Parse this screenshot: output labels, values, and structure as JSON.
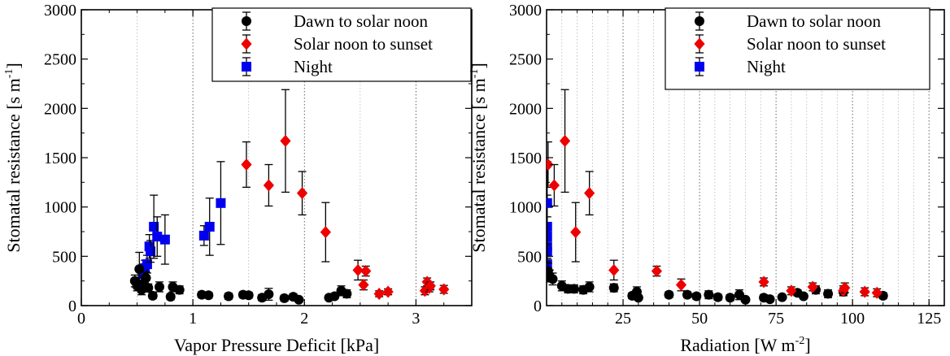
{
  "chart_data": [
    {
      "type": "scatter",
      "xlabel": "Vapor Pressure Deficit [kPa]",
      "ylabel": "Stomatal resistance [s m-1]",
      "ylabel_main": "Stomatal resistance [s m",
      "ylabel_sup": "-1",
      "ylabel_tail": "]",
      "xlim": [
        0,
        3.5
      ],
      "ylim": [
        0,
        3000
      ],
      "xticks": [
        0,
        1,
        2,
        3
      ],
      "xtick_labels": [
        "0",
        "1",
        "2",
        "3"
      ],
      "yticks": [
        0,
        500,
        1000,
        1500,
        2000,
        2500,
        3000
      ],
      "ytick_labels": [
        "0",
        "500",
        "1000",
        "1500",
        "2000",
        "2500",
        "3000"
      ],
      "grid": "vertical dotted lines",
      "legend_position": "top-right",
      "series": [
        {
          "name": "Dawn to solar noon",
          "color": "#000000",
          "marker": "circle",
          "points": [
            {
              "x": 0.48,
              "y": 250,
              "err": 60
            },
            {
              "x": 0.5,
              "y": 200,
              "err": 50
            },
            {
              "x": 0.52,
              "y": 370,
              "err": 170
            },
            {
              "x": 0.54,
              "y": 160,
              "err": 50
            },
            {
              "x": 0.56,
              "y": 230,
              "err": 60
            },
            {
              "x": 0.58,
              "y": 280,
              "err": 60
            },
            {
              "x": 0.6,
              "y": 180,
              "err": 40
            },
            {
              "x": 0.64,
              "y": 100,
              "err": 30
            },
            {
              "x": 0.7,
              "y": 190,
              "err": 50
            },
            {
              "x": 0.8,
              "y": 90,
              "err": 30
            },
            {
              "x": 0.82,
              "y": 190,
              "err": 50
            },
            {
              "x": 0.88,
              "y": 160,
              "err": 40
            },
            {
              "x": 1.08,
              "y": 110,
              "err": 30
            },
            {
              "x": 1.14,
              "y": 105,
              "err": 30
            },
            {
              "x": 1.32,
              "y": 95,
              "err": 30
            },
            {
              "x": 1.45,
              "y": 110,
              "err": 30
            },
            {
              "x": 1.5,
              "y": 105,
              "err": 30
            },
            {
              "x": 1.62,
              "y": 80,
              "err": 30
            },
            {
              "x": 1.68,
              "y": 115,
              "err": 60
            },
            {
              "x": 1.82,
              "y": 75,
              "err": 30
            },
            {
              "x": 1.9,
              "y": 90,
              "err": 30
            },
            {
              "x": 1.95,
              "y": 60,
              "err": 20
            },
            {
              "x": 2.22,
              "y": 80,
              "err": 20
            },
            {
              "x": 2.27,
              "y": 95,
              "err": 20
            },
            {
              "x": 2.33,
              "y": 150,
              "err": 50
            },
            {
              "x": 2.38,
              "y": 120,
              "err": 40
            }
          ]
        },
        {
          "name": "Solar noon to sunset",
          "color": "#ee0000",
          "marker": "diamond",
          "points": [
            {
              "x": 1.48,
              "y": 1430,
              "err": 230
            },
            {
              "x": 1.68,
              "y": 1220,
              "err": 210
            },
            {
              "x": 1.83,
              "y": 1670,
              "err": 520
            },
            {
              "x": 1.98,
              "y": 1140,
              "err": 220
            },
            {
              "x": 2.19,
              "y": 745,
              "err": 300
            },
            {
              "x": 2.48,
              "y": 360,
              "err": 100
            },
            {
              "x": 2.53,
              "y": 210,
              "err": 50
            },
            {
              "x": 2.55,
              "y": 350,
              "err": 50
            },
            {
              "x": 2.67,
              "y": 120,
              "err": 30
            },
            {
              "x": 2.75,
              "y": 140,
              "err": 30
            },
            {
              "x": 3.08,
              "y": 150,
              "err": 40
            },
            {
              "x": 3.1,
              "y": 240,
              "err": 40
            },
            {
              "x": 3.12,
              "y": 180,
              "err": 40
            },
            {
              "x": 3.13,
              "y": 200,
              "err": 40
            },
            {
              "x": 3.25,
              "y": 165,
              "err": 40
            }
          ]
        },
        {
          "name": "Night",
          "color": "#0000ee",
          "marker": "square",
          "points": [
            {
              "x": 0.55,
              "y": 320,
              "err": 70
            },
            {
              "x": 0.57,
              "y": 380,
              "err": 80
            },
            {
              "x": 0.59,
              "y": 420,
              "err": 90
            },
            {
              "x": 0.61,
              "y": 600,
              "err": 120
            },
            {
              "x": 0.62,
              "y": 550,
              "err": 110
            },
            {
              "x": 0.65,
              "y": 800,
              "err": 320
            },
            {
              "x": 0.68,
              "y": 700,
              "err": 200
            },
            {
              "x": 0.75,
              "y": 670,
              "err": 250
            },
            {
              "x": 1.1,
              "y": 710,
              "err": 100
            },
            {
              "x": 1.15,
              "y": 800,
              "err": 290
            },
            {
              "x": 1.25,
              "y": 1040,
              "err": 420
            }
          ]
        }
      ]
    },
    {
      "type": "scatter",
      "xlabel": "Radiation [W m-2]",
      "xlabel_main": "Radiation [W m",
      "xlabel_sup": "-2",
      "xlabel_tail": "]",
      "ylabel": "Stomatal resistance [s m-1]",
      "ylabel_main": "Stomatal resistance [s m",
      "ylabel_sup": "-1",
      "ylabel_tail": "]",
      "xlim": [
        0,
        130
      ],
      "ylim": [
        0,
        3000
      ],
      "xticks": [
        25,
        50,
        75,
        100,
        125
      ],
      "xtick_labels": [
        "25",
        "50",
        "75",
        "100",
        "125"
      ],
      "yticks": [
        0,
        500,
        1000,
        1500,
        2000,
        2500,
        3000
      ],
      "ytick_labels": [
        "0",
        "500",
        "1000",
        "1500",
        "2000",
        "2500",
        "3000"
      ],
      "grid": "vertical dotted lines",
      "legend_position": "top-right",
      "series": [
        {
          "name": "Dawn to solar noon",
          "color": "#000000",
          "marker": "circle",
          "points": [
            {
              "x": 0.5,
              "y": 350,
              "err": 80
            },
            {
              "x": 1.0,
              "y": 300,
              "err": 60
            },
            {
              "x": 2.0,
              "y": 270,
              "err": 60
            },
            {
              "x": 5.0,
              "y": 200,
              "err": 50
            },
            {
              "x": 7.0,
              "y": 170,
              "err": 40
            },
            {
              "x": 9.0,
              "y": 170,
              "err": 40
            },
            {
              "x": 12.0,
              "y": 160,
              "err": 40
            },
            {
              "x": 14.0,
              "y": 190,
              "err": 50
            },
            {
              "x": 22.0,
              "y": 180,
              "err": 40
            },
            {
              "x": 28.0,
              "y": 100,
              "err": 30
            },
            {
              "x": 29.5,
              "y": 140,
              "err": 50
            },
            {
              "x": 30.0,
              "y": 80,
              "err": 20
            },
            {
              "x": 40.0,
              "y": 110,
              "err": 30
            },
            {
              "x": 46.0,
              "y": 110,
              "err": 30
            },
            {
              "x": 49.0,
              "y": 95,
              "err": 30
            },
            {
              "x": 53.0,
              "y": 110,
              "err": 40
            },
            {
              "x": 56.0,
              "y": 85,
              "err": 30
            },
            {
              "x": 60.0,
              "y": 80,
              "err": 30
            },
            {
              "x": 63.0,
              "y": 110,
              "err": 50
            },
            {
              "x": 65.0,
              "y": 60,
              "err": 20
            },
            {
              "x": 71.0,
              "y": 80,
              "err": 30
            },
            {
              "x": 73.0,
              "y": 65,
              "err": 20
            },
            {
              "x": 77.0,
              "y": 85,
              "err": 20
            },
            {
              "x": 82.0,
              "y": 130,
              "err": 30
            },
            {
              "x": 84.0,
              "y": 95,
              "err": 20
            },
            {
              "x": 88.0,
              "y": 160,
              "err": 40
            },
            {
              "x": 92.0,
              "y": 120,
              "err": 40
            },
            {
              "x": 97.0,
              "y": 140,
              "err": 40
            },
            {
              "x": 110.0,
              "y": 100,
              "err": 30
            }
          ]
        },
        {
          "name": "Solar noon to sunset",
          "color": "#ee0000",
          "marker": "diamond",
          "points": [
            {
              "x": 0.5,
              "y": 1430,
              "err": 230
            },
            {
              "x": 2.5,
              "y": 1220,
              "err": 210
            },
            {
              "x": 6.0,
              "y": 1670,
              "err": 520
            },
            {
              "x": 9.5,
              "y": 745,
              "err": 300
            },
            {
              "x": 14.0,
              "y": 1140,
              "err": 220
            },
            {
              "x": 22.0,
              "y": 360,
              "err": 100
            },
            {
              "x": 36.0,
              "y": 350,
              "err": 50
            },
            {
              "x": 44.0,
              "y": 210,
              "err": 60
            },
            {
              "x": 71.0,
              "y": 240,
              "err": 40
            },
            {
              "x": 80.0,
              "y": 150,
              "err": 40
            },
            {
              "x": 87.0,
              "y": 190,
              "err": 40
            },
            {
              "x": 97.0,
              "y": 150,
              "err": 50
            },
            {
              "x": 97.5,
              "y": 180,
              "err": 50
            },
            {
              "x": 104.0,
              "y": 140,
              "err": 40
            },
            {
              "x": 108.0,
              "y": 130,
              "err": 40
            }
          ]
        },
        {
          "name": "Night",
          "color": "#0000ee",
          "marker": "square",
          "points": [
            {
              "x": 0.2,
              "y": 320,
              "err": 70
            },
            {
              "x": 0.2,
              "y": 420,
              "err": 90
            },
            {
              "x": 0.2,
              "y": 550,
              "err": 110
            },
            {
              "x": 0.2,
              "y": 600,
              "err": 120
            },
            {
              "x": 0.2,
              "y": 700,
              "err": 200
            },
            {
              "x": 0.2,
              "y": 800,
              "err": 320
            },
            {
              "x": 0.2,
              "y": 1040,
              "err": 420
            }
          ]
        }
      ]
    }
  ]
}
